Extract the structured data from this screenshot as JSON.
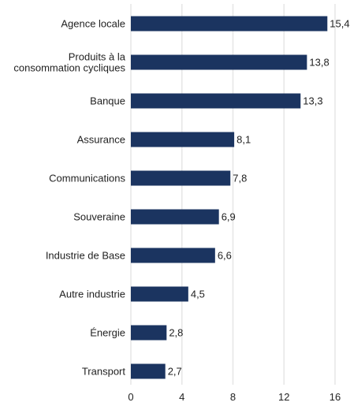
{
  "chart_data": {
    "type": "bar",
    "orientation": "horizontal",
    "categories": [
      "Agence locale",
      "Produits à la\nconsommation cycliques",
      "Banque",
      "Assurance",
      "Communications",
      "Souveraine",
      "Industrie de Base",
      "Autre industrie",
      "Énergie",
      "Transport"
    ],
    "values": [
      15.4,
      13.8,
      13.3,
      8.1,
      7.8,
      6.9,
      6.6,
      4.5,
      2.8,
      2.7
    ],
    "value_labels": [
      "15,4",
      "13,8",
      "13,3",
      "8,1",
      "7,8",
      "6,9",
      "6,6",
      "4,5",
      "2,8",
      "2,7"
    ],
    "title": "",
    "xlabel": "",
    "ylabel": "",
    "xlim": [
      0,
      16
    ],
    "xticks": [
      0,
      4,
      8,
      12,
      16
    ],
    "xtick_labels": [
      "0",
      "4",
      "8",
      "12",
      "16"
    ],
    "grid": "vertical",
    "legend": "none",
    "bar_color": "#1b3460",
    "grid_color": "#e6e6e6"
  }
}
